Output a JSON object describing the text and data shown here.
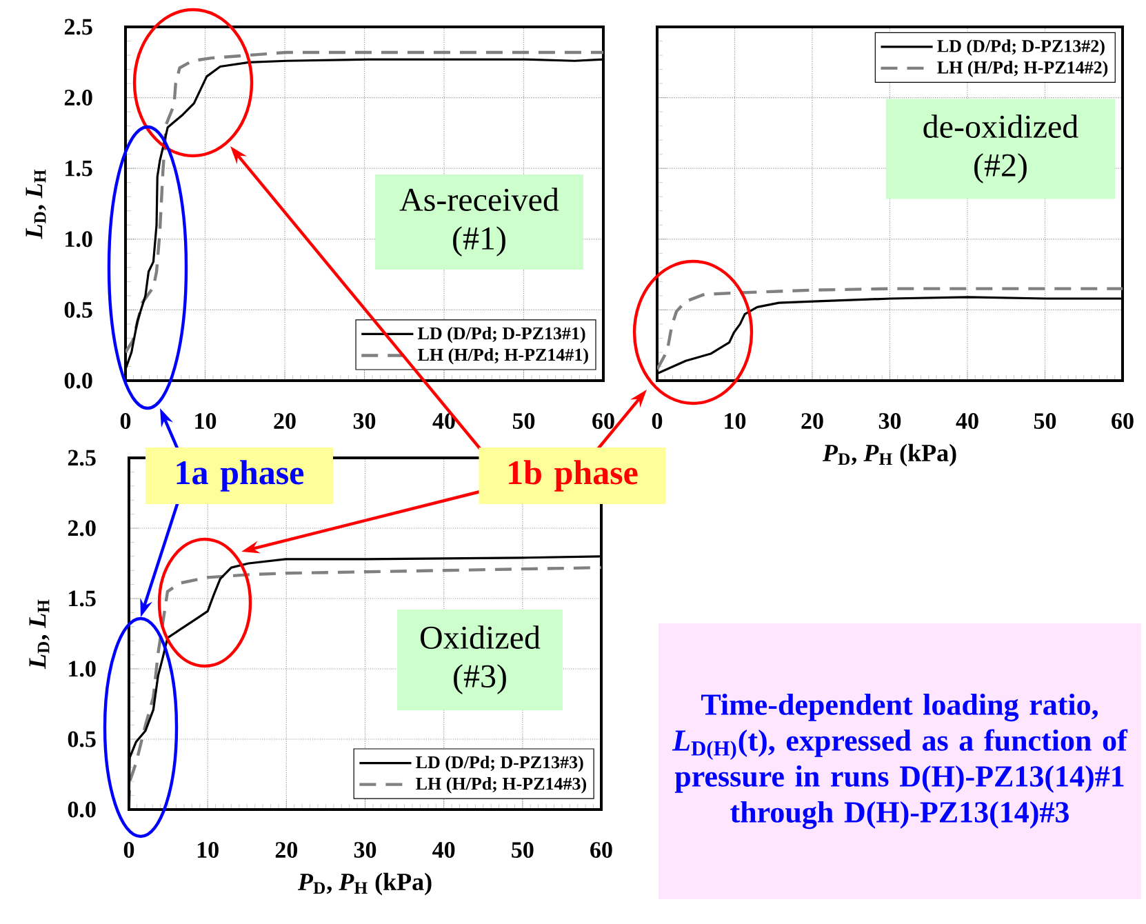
{
  "chart_data": [
    {
      "type": "line",
      "ylabel": "*L*$_{D}$, *L*$_{H}$",
      "xlim": [
        0,
        60
      ],
      "ylim": [
        0,
        2.5
      ],
      "xticks": [
        0,
        10,
        20,
        30,
        40,
        50,
        60
      ],
      "yticks": [
        {
          "value": 0,
          "label": "0.0"
        },
        {
          "value": 0.5,
          "label": "0.5"
        },
        {
          "value": 1,
          "label": "1.0"
        },
        {
          "value": 1.5,
          "label": "1.5"
        },
        {
          "value": 2,
          "label": "2.0"
        },
        {
          "value": 2.5,
          "label": "2.5"
        }
      ],
      "grid": true,
      "legend": "bottom right",
      "annotations": [
        "As-received (#1)"
      ],
      "series": [
        {
          "name": "LD (D/Pd; D-PZ13#1)",
          "color": "#000000",
          "line_style": "solid",
          "x": [
            0,
            0.75,
            1.5,
            2.5,
            2.9,
            3.5,
            3.9,
            4.0,
            4.3,
            5.3,
            7.2,
            8.6,
            10.2,
            11.9,
            15.5,
            20.2,
            30.5,
            40.3,
            50.2,
            56.4,
            60
          ],
          "values": [
            0.08,
            0.2,
            0.42,
            0.6,
            0.77,
            0.84,
            1.1,
            1.44,
            1.55,
            1.79,
            1.88,
            1.96,
            2.15,
            2.22,
            2.25,
            2.26,
            2.27,
            2.27,
            2.27,
            2.26,
            2.27
          ]
        },
        {
          "name": "LH (H/Pd; H-PZ14#1)",
          "color": "#808080",
          "line_style": "dashed",
          "x": [
            0,
            0.9,
            2.1,
            3.5,
            3.9,
            4.3,
            4.7,
            5.1,
            6.1,
            6.3,
            6.8,
            8.4,
            10.8,
            15.5,
            20.2,
            30.5,
            50.2,
            60
          ],
          "values": [
            0.2,
            0.28,
            0.55,
            0.66,
            0.77,
            1.04,
            1.48,
            1.81,
            1.95,
            2.1,
            2.21,
            2.26,
            2.28,
            2.3,
            2.32,
            2.32,
            2.32,
            2.32
          ]
        }
      ]
    },
    {
      "type": "line",
      "xlabel": "*P*$_{D}$, *P*$_{H}$ (kPa)",
      "xlim": [
        0,
        60
      ],
      "ylim": [
        0,
        2.5
      ],
      "xticks": [
        0,
        10,
        20,
        30,
        40,
        50,
        60
      ],
      "yticks": [
        0,
        0.5,
        1,
        1.5,
        2,
        2.5
      ],
      "tick_labels": "x",
      "grid": true,
      "legend": "top right",
      "annotations": [
        "de-oxidized (#2)"
      ],
      "series": [
        {
          "name": "LD (D/Pd; D-PZ13#2)",
          "color": "#000000",
          "line_style": "solid",
          "x": [
            0,
            3.7,
            6.9,
            9.3,
            9.9,
            10.7,
            11.3,
            12.9,
            15.7,
            20.1,
            30.1,
            40.1,
            50.1,
            60
          ],
          "values": [
            0.05,
            0.14,
            0.19,
            0.27,
            0.34,
            0.4,
            0.47,
            0.52,
            0.55,
            0.56,
            0.58,
            0.59,
            0.58,
            0.58
          ]
        },
        {
          "name": "LH (H/Pd; H-PZ14#2)",
          "color": "#808080",
          "line_style": "dashed",
          "x": [
            0,
            1.3,
            1.9,
            2.5,
            3.7,
            6.1,
            10.1,
            20.1,
            30.1,
            50.1,
            60
          ],
          "values": [
            0.08,
            0.21,
            0.39,
            0.49,
            0.56,
            0.61,
            0.62,
            0.64,
            0.65,
            0.65,
            0.65
          ]
        }
      ]
    },
    {
      "type": "line",
      "xlabel": "*P*$_{D}$, *P*$_{H}$ (kPa)",
      "ylabel": "*L*$_{D}$, *L*$_{H}$",
      "xlim": [
        0,
        60
      ],
      "ylim": [
        0,
        2.5
      ],
      "xticks": [
        0,
        10,
        20,
        30,
        40,
        50,
        60
      ],
      "yticks": [
        {
          "value": 0,
          "label": "0.0"
        },
        {
          "value": 0.5,
          "label": "0.5"
        },
        {
          "value": 1,
          "label": "1.0"
        },
        {
          "value": 1.5,
          "label": "1.5"
        },
        {
          "value": 2,
          "label": "2.0"
        },
        {
          "value": 2.5,
          "label": "2.5"
        }
      ],
      "grid": true,
      "legend": "bottom right",
      "annotations": [
        "Oxidized (#3)",
        "1a phase",
        "1b phase",
        "Time-dependent loading ratio, *L*$_{D(H)}$(t), expressed as a function of pressure in runs D(H)-PZ13(14)#1 through D(H)-PZ13(14)#3"
      ],
      "series": [
        {
          "name": "LD (D/Pd; D-PZ13#3)",
          "color": "#000000",
          "line_style": "solid",
          "x": [
            0,
            0.1,
            0.9,
            2.1,
            3.1,
            3.7,
            4.3,
            4.9,
            6.5,
            8.4,
            10.0,
            10.8,
            11.6,
            13.0,
            15.2,
            19.9,
            30.2,
            50.0,
            60
          ],
          "values": [
            0.02,
            0.37,
            0.48,
            0.56,
            0.71,
            0.95,
            1.08,
            1.22,
            1.28,
            1.35,
            1.41,
            1.53,
            1.64,
            1.72,
            1.75,
            1.78,
            1.78,
            1.79,
            1.8
          ]
        },
        {
          "name": "LH (H/Pd; H-PZ14#3)",
          "color": "#808080",
          "line_style": "dashed",
          "x": [
            0,
            0.1,
            0.9,
            2.1,
            3.1,
            3.7,
            4.5,
            4.9,
            6.5,
            10.0,
            15.2,
            19.9,
            30.2,
            50,
            60
          ],
          "values": [
            0.02,
            0.2,
            0.33,
            0.6,
            0.8,
            1.11,
            1.4,
            1.55,
            1.61,
            1.65,
            1.67,
            1.68,
            1.69,
            1.71,
            1.72
          ]
        }
      ]
    }
  ]
}
